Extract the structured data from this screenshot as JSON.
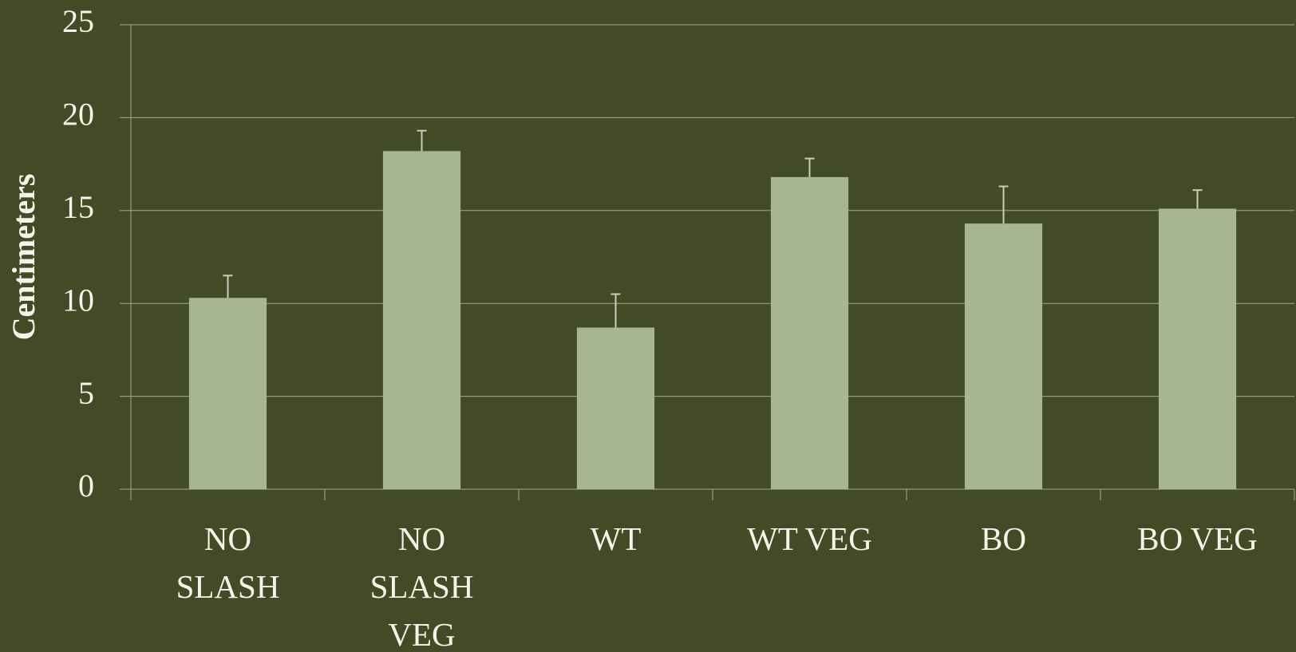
{
  "chart_data": {
    "type": "bar",
    "y_label": "Centimeters",
    "categories": [
      "NO SLASH",
      "NO SLASH VEG",
      "WT",
      "WT VEG",
      "BO",
      "BO VEG"
    ],
    "values": [
      10.3,
      18.2,
      8.7,
      16.8,
      14.3,
      15.1
    ],
    "errors": [
      1.2,
      1.1,
      1.8,
      1.0,
      2.0,
      1.0
    ],
    "color": "#a7b591",
    "ylim": [
      0,
      25
    ],
    "yticks": [
      0,
      5,
      10,
      15,
      20,
      25
    ],
    "grid": true
  }
}
